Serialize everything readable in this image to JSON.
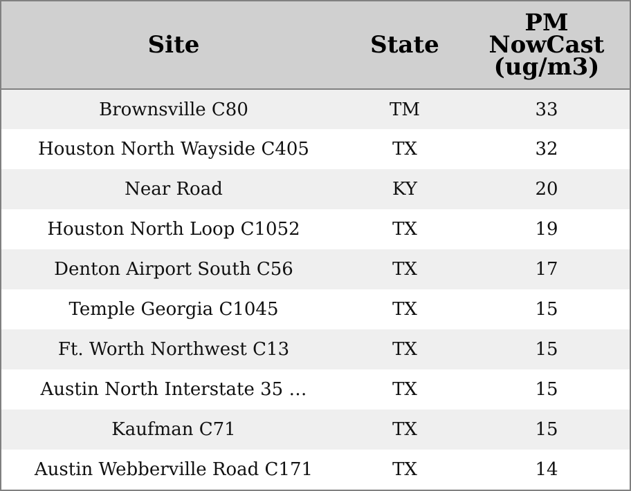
{
  "colors": {
    "header_bg": "#d0d0d0",
    "row_alt_bg": "#efefef",
    "row_bg": "#ffffff",
    "border": "#808080"
  },
  "chart_data": {
    "type": "table",
    "columns": [
      "Site",
      "State",
      "PM NowCast (ug/m3)"
    ],
    "header": {
      "site": "Site",
      "state": "State",
      "pm_lines": [
        "PM",
        "NowCast",
        "(ug/m3)"
      ]
    },
    "rows": [
      {
        "site": "Brownsville C80",
        "state": "TM",
        "pm": "33"
      },
      {
        "site": "Houston North Wayside C405",
        "state": "TX",
        "pm": "32"
      },
      {
        "site": "Near Road",
        "state": "KY",
        "pm": "20"
      },
      {
        "site": "Houston North Loop C1052",
        "state": "TX",
        "pm": "19"
      },
      {
        "site": "Denton Airport South C56",
        "state": "TX",
        "pm": "17"
      },
      {
        "site": "Temple Georgia C1045",
        "state": "TX",
        "pm": "15"
      },
      {
        "site": "Ft. Worth Northwest C13",
        "state": "TX",
        "pm": "15"
      },
      {
        "site": "Austin North Interstate 35 …",
        "state": "TX",
        "pm": "15"
      },
      {
        "site": "Kaufman C71",
        "state": "TX",
        "pm": "15"
      },
      {
        "site": "Austin Webberville Road C171",
        "state": "TX",
        "pm": "14"
      }
    ]
  }
}
